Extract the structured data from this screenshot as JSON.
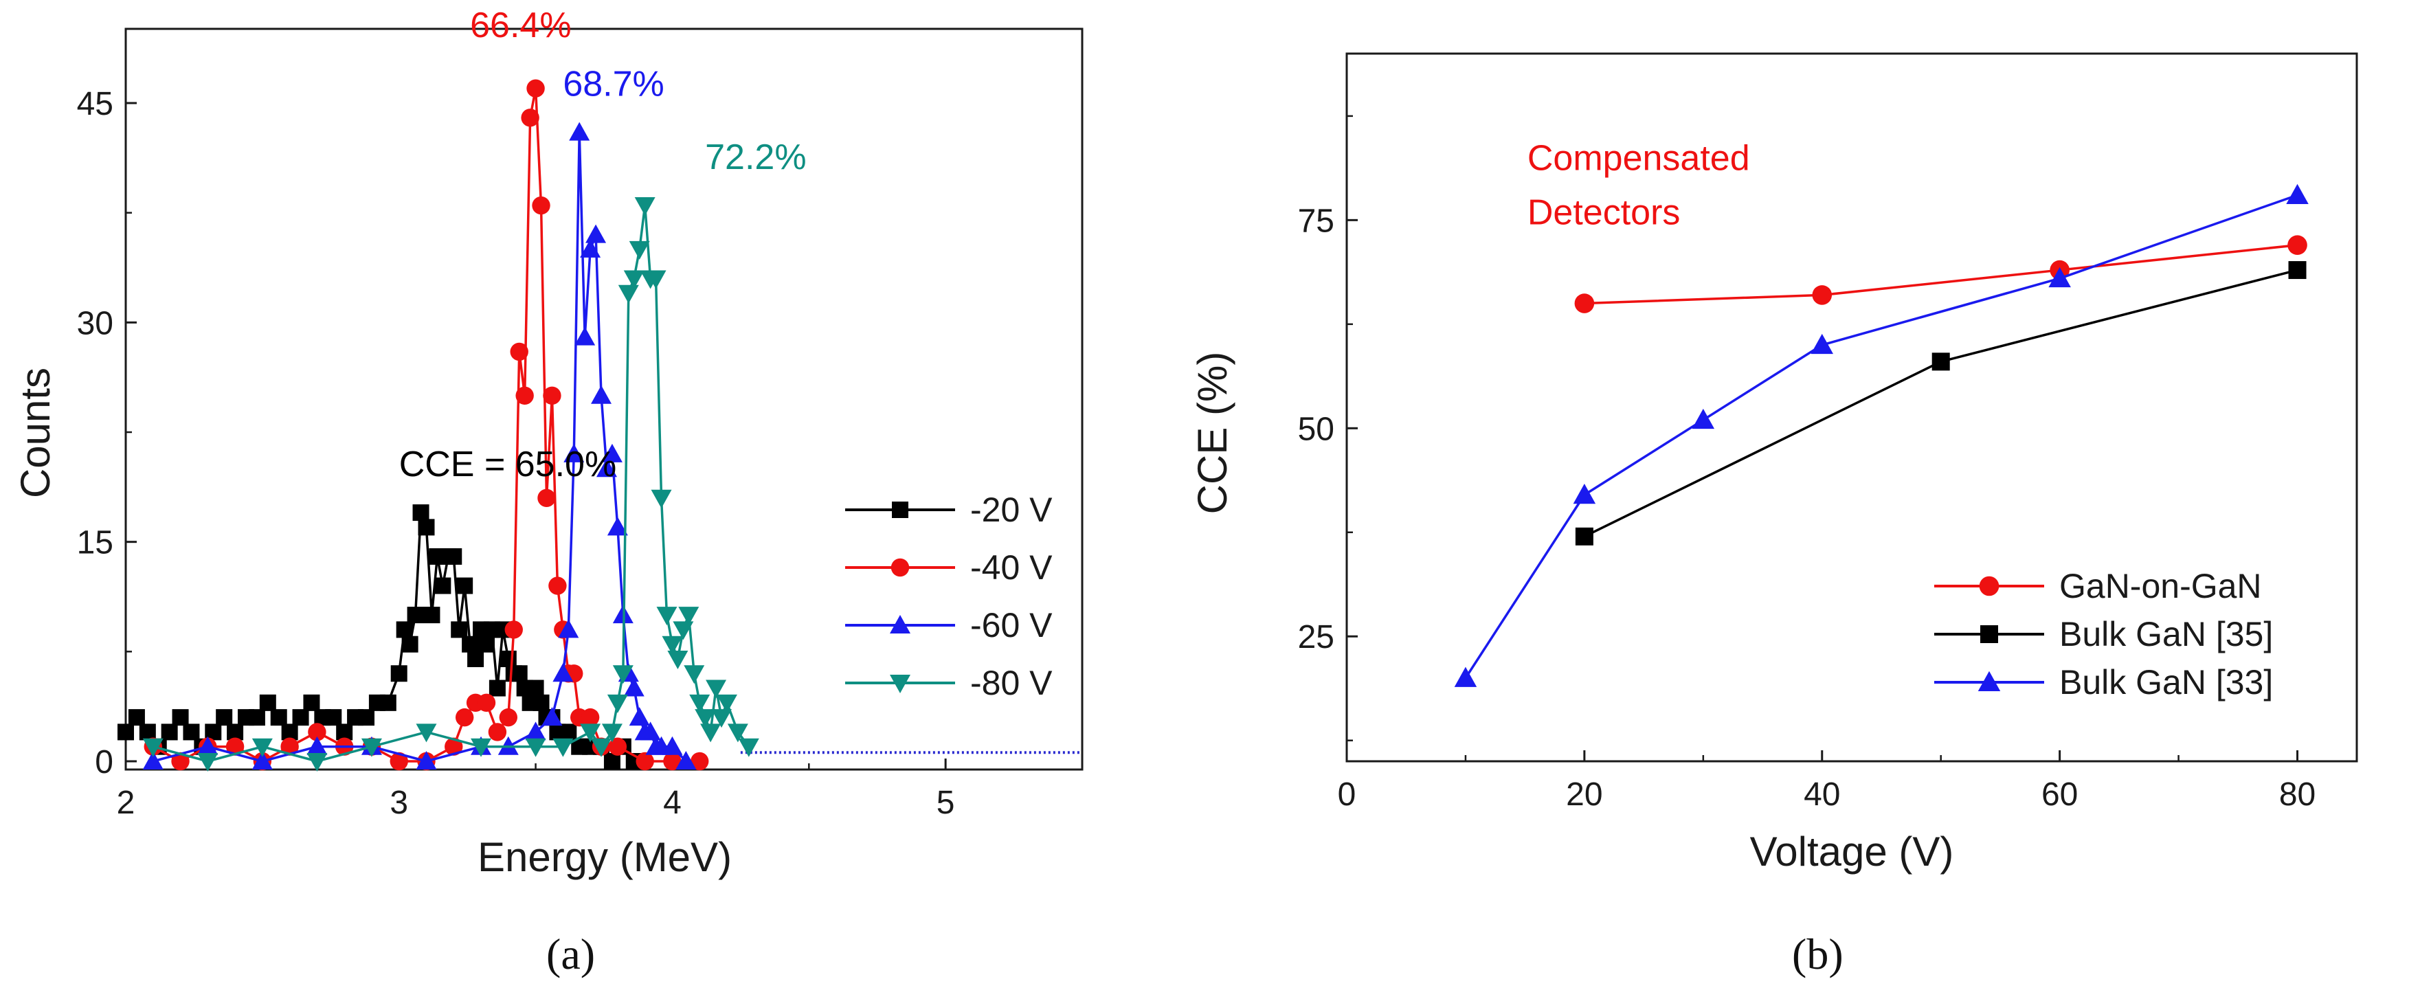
{
  "chart_data": [
    {
      "panel_label": "(a)",
      "type": "line",
      "title": "",
      "xlabel": "Energy (MeV)",
      "ylabel": "Counts",
      "xlim": [
        2,
        5.5
      ],
      "ylim": [
        0,
        48
      ],
      "xticks": [
        2,
        3,
        4,
        5
      ],
      "yticks": [
        0,
        15,
        30,
        45
      ],
      "colors": {
        "-20 V": "#000000",
        "-40 V": "#ee1111",
        "-60 V": "#1a1aee",
        "-80 V": "#0e8f82"
      },
      "series": [
        {
          "name": "-20 V",
          "marker": "square",
          "x": [
            2.0,
            2.04,
            2.08,
            2.12,
            2.16,
            2.2,
            2.24,
            2.28,
            2.32,
            2.36,
            2.4,
            2.44,
            2.48,
            2.52,
            2.56,
            2.6,
            2.64,
            2.68,
            2.72,
            2.76,
            2.8,
            2.84,
            2.88,
            2.92,
            2.96,
            3.0,
            3.02,
            3.04,
            3.06,
            3.08,
            3.1,
            3.12,
            3.14,
            3.16,
            3.18,
            3.2,
            3.22,
            3.24,
            3.26,
            3.28,
            3.3,
            3.32,
            3.34,
            3.36,
            3.38,
            3.4,
            3.42,
            3.44,
            3.46,
            3.48,
            3.5,
            3.52,
            3.54,
            3.56,
            3.58,
            3.62,
            3.66,
            3.7,
            3.74,
            3.78,
            3.82,
            3.86
          ],
          "y": [
            2,
            3,
            2,
            1,
            2,
            3,
            2,
            1,
            2,
            3,
            2,
            3,
            3,
            4,
            3,
            2,
            3,
            4,
            3,
            3,
            2,
            3,
            3,
            4,
            4,
            6,
            9,
            8,
            10,
            17,
            16,
            10,
            14,
            12,
            14,
            14,
            9,
            12,
            8,
            7,
            9,
            8,
            9,
            5,
            9,
            7,
            6,
            6,
            5,
            4,
            5,
            4,
            3,
            3,
            2,
            2,
            1,
            1,
            1,
            0,
            1,
            0
          ]
        },
        {
          "name": "-40 V",
          "marker": "circle",
          "x": [
            2.1,
            2.2,
            2.3,
            2.4,
            2.5,
            2.6,
            2.7,
            2.8,
            2.9,
            3.0,
            3.1,
            3.2,
            3.24,
            3.28,
            3.32,
            3.36,
            3.4,
            3.42,
            3.44,
            3.46,
            3.48,
            3.5,
            3.52,
            3.54,
            3.56,
            3.58,
            3.6,
            3.62,
            3.64,
            3.66,
            3.7,
            3.74,
            3.8,
            3.9,
            4.0,
            4.1
          ],
          "y": [
            1,
            0,
            1,
            1,
            0,
            1,
            2,
            1,
            1,
            0,
            0,
            1,
            3,
            4,
            4,
            2,
            3,
            9,
            28,
            25,
            44,
            46,
            38,
            18,
            25,
            12,
            9,
            6,
            6,
            3,
            3,
            1,
            1,
            0,
            0,
            0
          ]
        },
        {
          "name": "-60 V",
          "marker": "triangle-up",
          "x": [
            2.1,
            2.3,
            2.5,
            2.7,
            2.9,
            3.1,
            3.3,
            3.4,
            3.5,
            3.56,
            3.6,
            3.62,
            3.64,
            3.66,
            3.68,
            3.7,
            3.72,
            3.74,
            3.76,
            3.78,
            3.8,
            3.82,
            3.84,
            3.86,
            3.88,
            3.9,
            3.92,
            3.94,
            3.96,
            4.0,
            4.05
          ],
          "y": [
            0,
            1,
            0,
            1,
            1,
            0,
            1,
            1,
            2,
            3,
            6,
            9,
            21,
            43,
            29,
            35,
            36,
            25,
            20,
            21,
            16,
            10,
            6,
            5,
            3,
            2,
            2,
            1,
            1,
            1,
            0
          ]
        },
        {
          "name": "-80 V",
          "marker": "triangle-down",
          "x": [
            2.1,
            2.3,
            2.5,
            2.7,
            2.9,
            3.1,
            3.3,
            3.5,
            3.6,
            3.7,
            3.74,
            3.78,
            3.8,
            3.82,
            3.84,
            3.86,
            3.88,
            3.9,
            3.92,
            3.94,
            3.96,
            3.98,
            4.0,
            4.02,
            4.04,
            4.06,
            4.08,
            4.1,
            4.12,
            4.14,
            4.16,
            4.18,
            4.2,
            4.24,
            4.28
          ],
          "y": [
            1,
            0,
            1,
            0,
            1,
            2,
            1,
            1,
            1,
            2,
            1,
            2,
            4,
            6,
            32,
            33,
            35,
            38,
            33,
            33,
            18,
            10,
            8,
            7,
            9,
            10,
            6,
            4,
            3,
            2,
            5,
            3,
            4,
            2,
            1
          ]
        }
      ],
      "annotations": [
        {
          "text": "CCE = 65.0%",
          "x": 3.0,
          "y": 19.5,
          "color": "#000000"
        },
        {
          "text": "66.4%",
          "x": 3.26,
          "y": 49.5,
          "color": "#ee1111"
        },
        {
          "text": "68.7%",
          "x": 3.6,
          "y": 45.5,
          "color": "#1a1aee"
        },
        {
          "text": "72.2%",
          "x": 4.12,
          "y": 40.5,
          "color": "#0e8f82"
        }
      ],
      "legend": {
        "position": "right-middle",
        "entries": [
          "-20 V",
          "-40 V",
          "-60 V",
          "-80 V"
        ]
      }
    },
    {
      "panel_label": "(b)",
      "type": "line",
      "title": "",
      "xlabel": "Voltage (V)",
      "ylabel": "CCE (%)",
      "xlim": [
        0,
        85
      ],
      "ylim": [
        10,
        95
      ],
      "xticks": [
        0,
        20,
        40,
        60,
        80
      ],
      "yticks": [
        25,
        50,
        75
      ],
      "colors": {
        "GaN-on-GaN": "#ee1111",
        "Bulk GaN [35]": "#000000",
        "Bulk GaN [33]": "#1a1aee"
      },
      "series": [
        {
          "name": "GaN-on-GaN",
          "marker": "circle",
          "x": [
            20,
            40,
            60,
            80
          ],
          "y": [
            65,
            66,
            69,
            72
          ]
        },
        {
          "name": "Bulk GaN [35]",
          "marker": "square",
          "x": [
            20,
            50,
            80
          ],
          "y": [
            37,
            58,
            69
          ]
        },
        {
          "name": "Bulk GaN [33]",
          "marker": "triangle-up",
          "x": [
            10,
            20,
            30,
            40,
            60,
            80
          ],
          "y": [
            20,
            42,
            51,
            60,
            68,
            78
          ]
        }
      ],
      "annotations": [
        {
          "text": "Compensated",
          "x": 15.2,
          "y": 81,
          "color": "#ee1111"
        },
        {
          "text": "Detectors",
          "x": 15.2,
          "y": 74.5,
          "color": "#ee1111"
        }
      ],
      "legend": {
        "position": "bottom-right",
        "entries": [
          "GaN-on-GaN",
          "Bulk GaN [35]",
          "Bulk GaN [33]"
        ]
      }
    }
  ]
}
